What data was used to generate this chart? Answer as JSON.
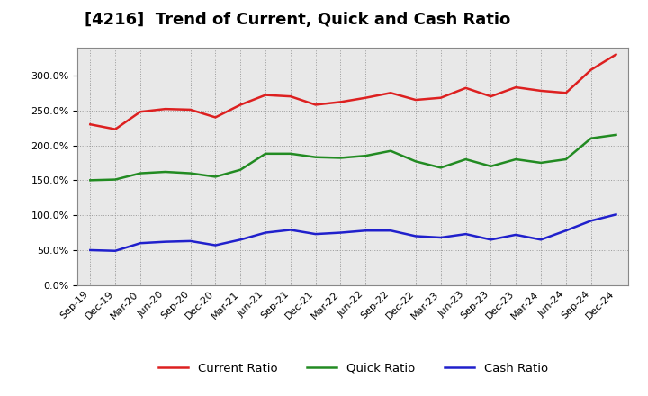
{
  "title": "[4216]  Trend of Current, Quick and Cash Ratio",
  "labels": [
    "Sep-19",
    "Dec-19",
    "Mar-20",
    "Jun-20",
    "Sep-20",
    "Dec-20",
    "Mar-21",
    "Jun-21",
    "Sep-21",
    "Dec-21",
    "Mar-22",
    "Jun-22",
    "Sep-22",
    "Dec-22",
    "Mar-23",
    "Jun-23",
    "Sep-23",
    "Dec-23",
    "Mar-24",
    "Jun-24",
    "Sep-24",
    "Dec-24"
  ],
  "current_ratio": [
    230,
    223,
    248,
    252,
    251,
    240,
    258,
    272,
    270,
    258,
    262,
    268,
    275,
    265,
    268,
    282,
    270,
    283,
    278,
    275,
    308,
    330
  ],
  "quick_ratio": [
    150,
    151,
    160,
    162,
    160,
    155,
    165,
    188,
    188,
    183,
    182,
    185,
    192,
    177,
    168,
    180,
    170,
    180,
    175,
    180,
    210,
    215
  ],
  "cash_ratio": [
    50,
    49,
    60,
    62,
    63,
    57,
    65,
    75,
    79,
    73,
    75,
    78,
    78,
    70,
    68,
    73,
    65,
    72,
    65,
    78,
    92,
    101
  ],
  "current_color": "#dd2020",
  "quick_color": "#228b22",
  "cash_color": "#2020cc",
  "plot_bg_color": "#e8e8e8",
  "fig_bg_color": "#ffffff",
  "grid_color": "#999999",
  "ylim": [
    0,
    340
  ],
  "yticks": [
    0,
    50,
    100,
    150,
    200,
    250,
    300
  ],
  "legend_labels": [
    "Current Ratio",
    "Quick Ratio",
    "Cash Ratio"
  ],
  "title_fontsize": 13,
  "tick_fontsize": 8,
  "legend_fontsize": 9.5
}
